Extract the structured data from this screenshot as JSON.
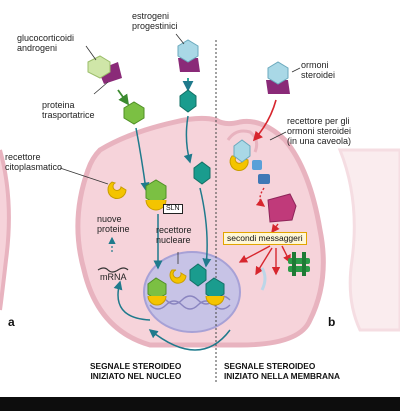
{
  "labels": {
    "glucocorticoidi": "glucocorticoidi\nandrogeni",
    "estrogeni": "estrogeni\nprogestinici",
    "proteina": "proteina\ntrasportatrice",
    "recettore_citoplasmatico": "recettore\ncitoplasmatico",
    "sln": "SLN",
    "recettore_nucleare": "recettore\nnucleare",
    "nuove_proteine": "nuove\nproteine",
    "mrna": "mRNA",
    "ormoni_steroidei": "ormoni\nsteroidei",
    "recettore_membrana": "recettore per gli\normoni steroidei\n(in una caveola)",
    "secondi_messaggeri": "secondi messaggeri"
  },
  "panels": {
    "a": "a",
    "b": "b"
  },
  "captions": {
    "left": "SEGNALE STEROIDEO\nINIZIATO NEL NUCLEO",
    "right": "SEGNALE STEROIDEO\nINIZIATO NELLA MEMBRANA"
  },
  "colors": {
    "cell_fill": "#f6d3da",
    "cell_stroke": "#e8b3bf",
    "nucleus_fill": "#c7c3e6",
    "hormone_green": "#7bc043",
    "hormone_teal": "#1a9c8e",
    "receptor_yellow": "#f4c400",
    "carrier_purple": "#8a2a78",
    "arrow_teal": "#1f7a8c",
    "arrow_red": "#d7262e",
    "kinase_pink": "#c03a7a",
    "effector_green": "#2a9b48",
    "blue_protein": "#5aa0d8"
  }
}
